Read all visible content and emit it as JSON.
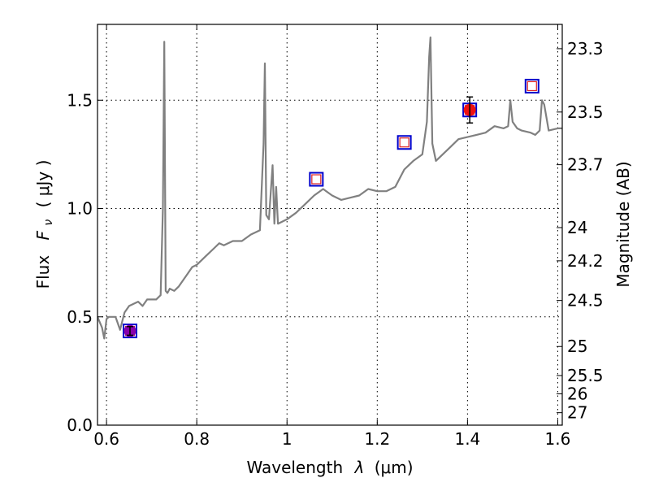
{
  "chart_data": {
    "type": "line",
    "xlabel_text": "Wavelength",
    "xlabel_symbol": "λ",
    "xlabel_unit": "(μm)",
    "ylabel_prefix": "Flux",
    "ylabel_symbol": "F",
    "ylabel_subscript": "ν",
    "ylabel_unit": "( μJy )",
    "y2label": "Magnitude (AB)",
    "xlim": [
      0.58,
      1.61
    ],
    "ylim": [
      0.0,
      1.85
    ],
    "x_ticks": [
      {
        "value": 0.6,
        "label": "0.6"
      },
      {
        "value": 0.8,
        "label": "0.8"
      },
      {
        "value": 1.0,
        "label": "1"
      },
      {
        "value": 1.2,
        "label": "1.2"
      },
      {
        "value": 1.4,
        "label": "1.4"
      },
      {
        "value": 1.6,
        "label": "1.6"
      }
    ],
    "y_ticks": [
      {
        "value": 0.0,
        "label": "0.0"
      },
      {
        "value": 0.5,
        "label": "0.5"
      },
      {
        "value": 1.0,
        "label": "1.0"
      },
      {
        "value": 1.5,
        "label": "1.5"
      }
    ],
    "y2_ticks": [
      {
        "value": 23.3,
        "label": "23.3"
      },
      {
        "value": 23.5,
        "label": "23.5"
      },
      {
        "value": 23.7,
        "label": "23.7"
      },
      {
        "value": 24.0,
        "label": "24"
      },
      {
        "value": 24.2,
        "label": "24.2"
      },
      {
        "value": 24.5,
        "label": "24.5"
      },
      {
        "value": 25.0,
        "label": "25"
      },
      {
        "value": 25.5,
        "label": "25.5"
      },
      {
        "value": 26.0,
        "label": "26"
      },
      {
        "value": 27.0,
        "label": "27"
      }
    ],
    "grid": true,
    "spectrum": {
      "color": "#808080",
      "x": [
        0.58,
        0.59,
        0.595,
        0.6,
        0.605,
        0.61,
        0.62,
        0.63,
        0.635,
        0.64,
        0.65,
        0.66,
        0.67,
        0.68,
        0.69,
        0.7,
        0.71,
        0.72,
        0.725,
        0.728,
        0.731,
        0.735,
        0.74,
        0.75,
        0.76,
        0.77,
        0.78,
        0.79,
        0.8,
        0.82,
        0.84,
        0.85,
        0.86,
        0.88,
        0.9,
        0.92,
        0.94,
        0.948,
        0.951,
        0.954,
        0.96,
        0.968,
        0.972,
        0.976,
        0.98,
        1.0,
        1.02,
        1.04,
        1.06,
        1.08,
        1.1,
        1.12,
        1.14,
        1.16,
        1.18,
        1.2,
        1.22,
        1.24,
        1.26,
        1.27,
        1.28,
        1.3,
        1.31,
        1.315,
        1.318,
        1.322,
        1.33,
        1.34,
        1.36,
        1.38,
        1.4,
        1.42,
        1.44,
        1.46,
        1.48,
        1.49,
        1.495,
        1.5,
        1.51,
        1.52,
        1.54,
        1.55,
        1.56,
        1.565,
        1.57,
        1.58,
        1.6,
        1.61
      ],
      "y": [
        0.5,
        0.45,
        0.4,
        0.49,
        0.5,
        0.5,
        0.5,
        0.44,
        0.48,
        0.52,
        0.55,
        0.56,
        0.57,
        0.55,
        0.58,
        0.58,
        0.58,
        0.6,
        1.0,
        1.77,
        0.62,
        0.61,
        0.63,
        0.62,
        0.64,
        0.67,
        0.7,
        0.73,
        0.74,
        0.78,
        0.82,
        0.84,
        0.83,
        0.85,
        0.85,
        0.88,
        0.9,
        1.3,
        1.67,
        0.97,
        0.95,
        1.2,
        0.93,
        1.1,
        0.93,
        0.95,
        0.98,
        1.02,
        1.06,
        1.09,
        1.06,
        1.04,
        1.05,
        1.06,
        1.09,
        1.08,
        1.08,
        1.1,
        1.18,
        1.2,
        1.22,
        1.25,
        1.4,
        1.7,
        1.79,
        1.3,
        1.22,
        1.24,
        1.28,
        1.32,
        1.33,
        1.34,
        1.35,
        1.38,
        1.37,
        1.38,
        1.5,
        1.4,
        1.37,
        1.36,
        1.35,
        1.34,
        1.36,
        1.5,
        1.48,
        1.36,
        1.37,
        1.37
      ]
    },
    "model_points": {
      "color": "#0000cc",
      "inner_color": "#dd2222",
      "x": [
        0.652,
        1.065,
        1.26,
        1.405,
        1.543
      ],
      "y": [
        0.435,
        1.135,
        1.305,
        1.455,
        1.565
      ]
    },
    "observed_points": [
      {
        "x": 0.652,
        "y": 0.435,
        "yerr": 0.02,
        "color": "#8800aa"
      },
      {
        "x": 1.405,
        "y": 1.455,
        "yerr": 0.06,
        "color": "#ee1111"
      }
    ]
  }
}
